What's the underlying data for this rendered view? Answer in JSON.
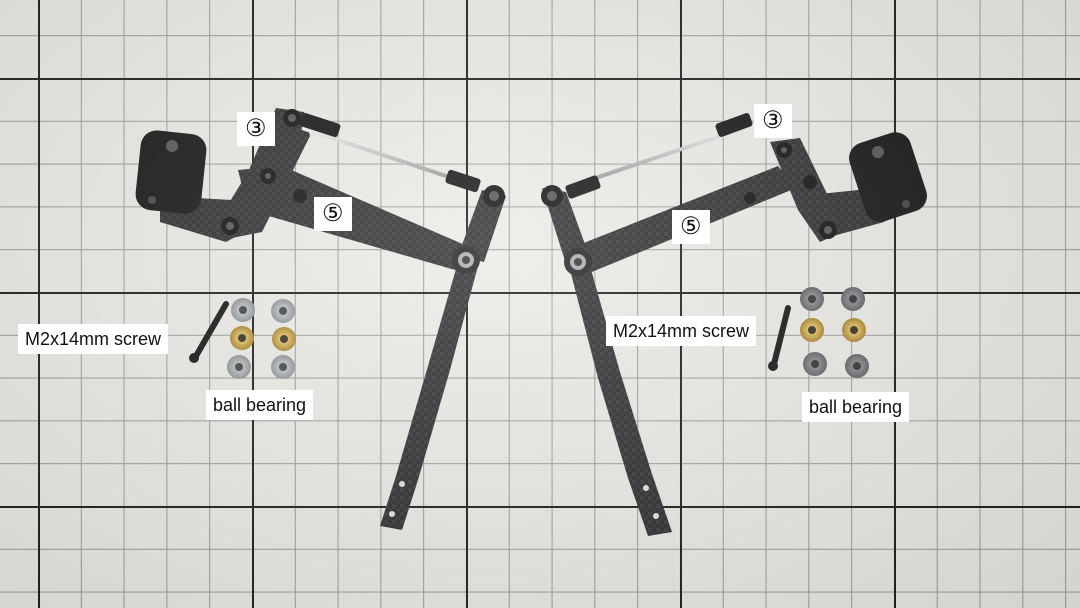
{
  "labels": {
    "left": {
      "part_3": "③",
      "part_5": "⑤",
      "screw": "M2x14mm screw",
      "bearing": "ball bearing"
    },
    "right": {
      "part_3": "③",
      "part_5": "⑤",
      "screw": "M2x14mm screw",
      "bearing": "ball bearing"
    }
  },
  "colors": {
    "carbon": "#2a2a2c",
    "grid_major": "#1c1c1c",
    "paper": "#ecebe7",
    "brass": "#c9a347"
  }
}
